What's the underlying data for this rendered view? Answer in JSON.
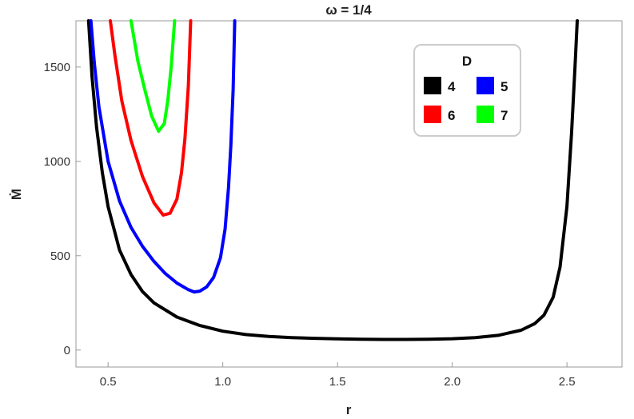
{
  "chart_data": {
    "type": "line",
    "title": "ω = 1/4",
    "xlabel": "r",
    "ylabel": "Ṁ",
    "xlim": [
      0.36,
      2.74
    ],
    "ylim": [
      -90,
      1745
    ],
    "xticks": [
      0.5,
      1.0,
      1.5,
      2.0,
      2.5
    ],
    "xtick_labels": [
      "0.5",
      "1.0",
      "1.5",
      "2.0",
      "2.5"
    ],
    "yticks": [
      0,
      500,
      1000,
      1500
    ],
    "ytick_labels": [
      "0",
      "500",
      "1000",
      "1500"
    ],
    "grid": false,
    "legend": {
      "title": "D",
      "placement": "top-right"
    },
    "series": [
      {
        "name": "4",
        "color": "#000000",
        "points": [
          [
            0.415,
            1745
          ],
          [
            0.43,
            1450
          ],
          [
            0.45,
            1180
          ],
          [
            0.475,
            940
          ],
          [
            0.5,
            760
          ],
          [
            0.55,
            530
          ],
          [
            0.6,
            400
          ],
          [
            0.65,
            310
          ],
          [
            0.7,
            250
          ],
          [
            0.8,
            175
          ],
          [
            0.9,
            130
          ],
          [
            1.0,
            100
          ],
          [
            1.1,
            82
          ],
          [
            1.2,
            72
          ],
          [
            1.3,
            66
          ],
          [
            1.4,
            62
          ],
          [
            1.5,
            59
          ],
          [
            1.6,
            57
          ],
          [
            1.7,
            56
          ],
          [
            1.8,
            56
          ],
          [
            1.9,
            57
          ],
          [
            2.0,
            60
          ],
          [
            2.1,
            66
          ],
          [
            2.2,
            78
          ],
          [
            2.3,
            105
          ],
          [
            2.36,
            140
          ],
          [
            2.4,
            185
          ],
          [
            2.44,
            280
          ],
          [
            2.47,
            440
          ],
          [
            2.5,
            760
          ],
          [
            2.52,
            1150
          ],
          [
            2.535,
            1500
          ],
          [
            2.545,
            1745
          ]
        ]
      },
      {
        "name": "5",
        "color": "#0000ff",
        "points": [
          [
            0.425,
            1745
          ],
          [
            0.44,
            1520
          ],
          [
            0.46,
            1290
          ],
          [
            0.5,
            1000
          ],
          [
            0.55,
            790
          ],
          [
            0.6,
            650
          ],
          [
            0.65,
            550
          ],
          [
            0.7,
            470
          ],
          [
            0.75,
            405
          ],
          [
            0.8,
            355
          ],
          [
            0.85,
            320
          ],
          [
            0.875,
            308
          ],
          [
            0.9,
            312
          ],
          [
            0.93,
            335
          ],
          [
            0.96,
            385
          ],
          [
            0.99,
            490
          ],
          [
            1.01,
            640
          ],
          [
            1.025,
            860
          ],
          [
            1.035,
            1080
          ],
          [
            1.045,
            1380
          ],
          [
            1.052,
            1745
          ]
        ]
      },
      {
        "name": "6",
        "color": "#ff0000",
        "points": [
          [
            0.51,
            1745
          ],
          [
            0.53,
            1560
          ],
          [
            0.56,
            1320
          ],
          [
            0.6,
            1110
          ],
          [
            0.65,
            920
          ],
          [
            0.7,
            780
          ],
          [
            0.74,
            715
          ],
          [
            0.77,
            725
          ],
          [
            0.8,
            800
          ],
          [
            0.82,
            940
          ],
          [
            0.835,
            1120
          ],
          [
            0.85,
            1400
          ],
          [
            0.86,
            1745
          ]
        ]
      },
      {
        "name": "7",
        "color": "#00ff00",
        "points": [
          [
            0.6,
            1745
          ],
          [
            0.63,
            1530
          ],
          [
            0.66,
            1380
          ],
          [
            0.69,
            1240
          ],
          [
            0.72,
            1160
          ],
          [
            0.745,
            1200
          ],
          [
            0.76,
            1320
          ],
          [
            0.775,
            1500
          ],
          [
            0.79,
            1745
          ]
        ]
      }
    ]
  }
}
